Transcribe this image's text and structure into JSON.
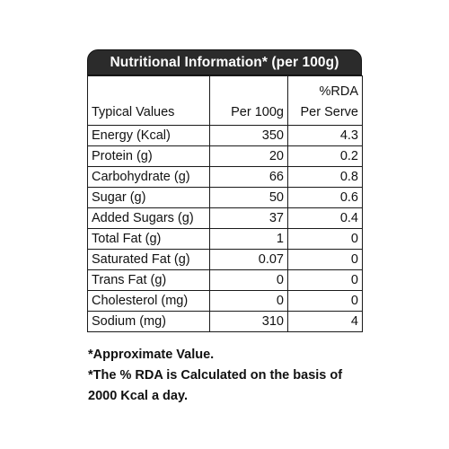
{
  "title": "Nutritional Information* (per 100g)",
  "columns": {
    "name": "Typical Values",
    "per100": "Per 100g",
    "rda_line1": "%RDA",
    "rda_line2": "Per Serve"
  },
  "rows": [
    {
      "name": "Energy (Kcal)",
      "per100": "350",
      "rda": "4.3"
    },
    {
      "name": "Protein (g)",
      "per100": "20",
      "rda": "0.2"
    },
    {
      "name": "Carbohydrate (g)",
      "per100": "66",
      "rda": "0.8"
    },
    {
      "name": "Sugar (g)",
      "per100": "50",
      "rda": "0.6"
    },
    {
      "name": "Added Sugars (g)",
      "per100": "37",
      "rda": "0.4"
    },
    {
      "name": "Total Fat (g)",
      "per100": "1",
      "rda": "0"
    },
    {
      "name": "Saturated Fat (g)",
      "per100": "0.07",
      "rda": "0"
    },
    {
      "name": "Trans Fat (g)",
      "per100": "0",
      "rda": "0"
    },
    {
      "name": "Cholesterol (mg)",
      "per100": "0",
      "rda": "0"
    },
    {
      "name": "Sodium (mg)",
      "per100": "310",
      "rda": "4"
    }
  ],
  "notes": {
    "line1": "*Approximate Value.",
    "line2": "*The % RDA is Calculated on the basis of",
    "line3": "2000 Kcal a day."
  },
  "colors": {
    "header_bg": "#2b2b2b",
    "header_text": "#ffffff",
    "border": "#1a1a1a"
  }
}
